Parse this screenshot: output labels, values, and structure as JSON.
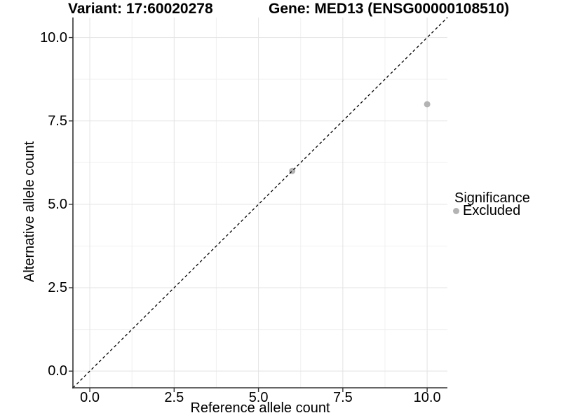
{
  "titles": {
    "variant": "Variant: 17:60020278",
    "gene": "Gene: MED13 (ENSG00000108510)"
  },
  "chart_data": {
    "type": "scatter",
    "title_left": "Variant: 17:60020278",
    "title_right": "Gene: MED13 (ENSG00000108510)",
    "xlabel": "Reference allele count",
    "ylabel": "Alternative allele count",
    "xlim": [
      -0.5,
      10.6
    ],
    "ylim": [
      -0.5,
      10.6
    ],
    "x_ticks": [
      0,
      2.5,
      5,
      7.5,
      10
    ],
    "x_tick_labels": [
      "0.0",
      "2.5",
      "5.0",
      "7.5",
      "10.0"
    ],
    "y_ticks": [
      0,
      2.5,
      5,
      7.5,
      10
    ],
    "y_tick_labels": [
      "0.0",
      "2.5",
      "5.0",
      "7.5",
      "10.0"
    ],
    "grid": "major+minor",
    "legend_position": "right",
    "legend": {
      "title": "Significance",
      "items": [
        {
          "label": "Excluded",
          "color": "#b3b3b3"
        }
      ]
    },
    "series": [
      {
        "name": "Excluded",
        "color": "#b3b3b3",
        "point_radius_px": 4.5,
        "points": [
          {
            "x": 6,
            "y": 6
          },
          {
            "x": 10,
            "y": 8
          }
        ]
      }
    ],
    "identity_line": {
      "type": "y=x",
      "style": "dashed",
      "color": "#000000"
    },
    "style": {
      "grid_major_color": "#e3e3e3",
      "grid_minor_color": "#f0f0f0",
      "axis_line_color": "#333333",
      "tick_color": "#333333",
      "text_color": "#000000",
      "background": "#ffffff"
    }
  }
}
